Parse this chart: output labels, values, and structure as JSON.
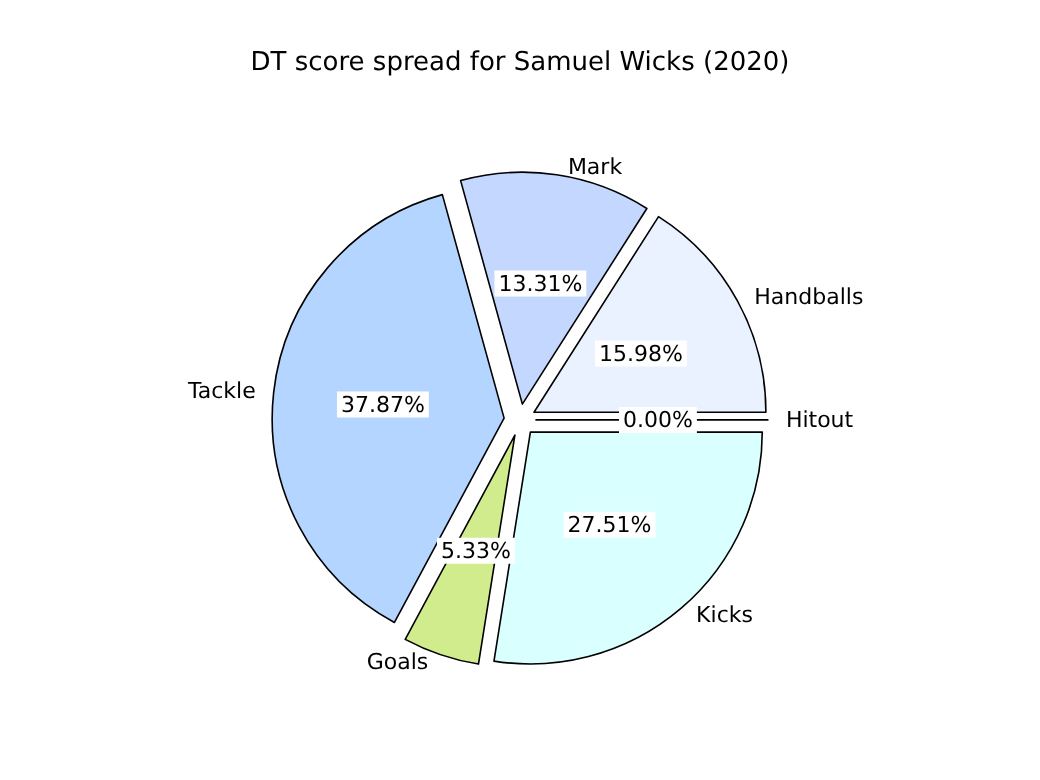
{
  "chart_data": {
    "type": "pie",
    "title": "DT score spread for Samuel Wicks (2020)",
    "categories": [
      "Hitout",
      "Handballs",
      "Mark",
      "Tackle",
      "Goals",
      "Kicks"
    ],
    "values": [
      0.0,
      15.98,
      13.31,
      37.87,
      5.33,
      27.51
    ],
    "colors": [
      "#e0e0ff",
      "#eaf2ff",
      "#c4d7ff",
      "#b4d5ff",
      "#d0ec8c",
      "#d9ffff"
    ],
    "value_labels": [
      "0.00%",
      "15.98%",
      "13.31%",
      "37.87%",
      "5.33%",
      "27.51%"
    ],
    "legend": false
  }
}
